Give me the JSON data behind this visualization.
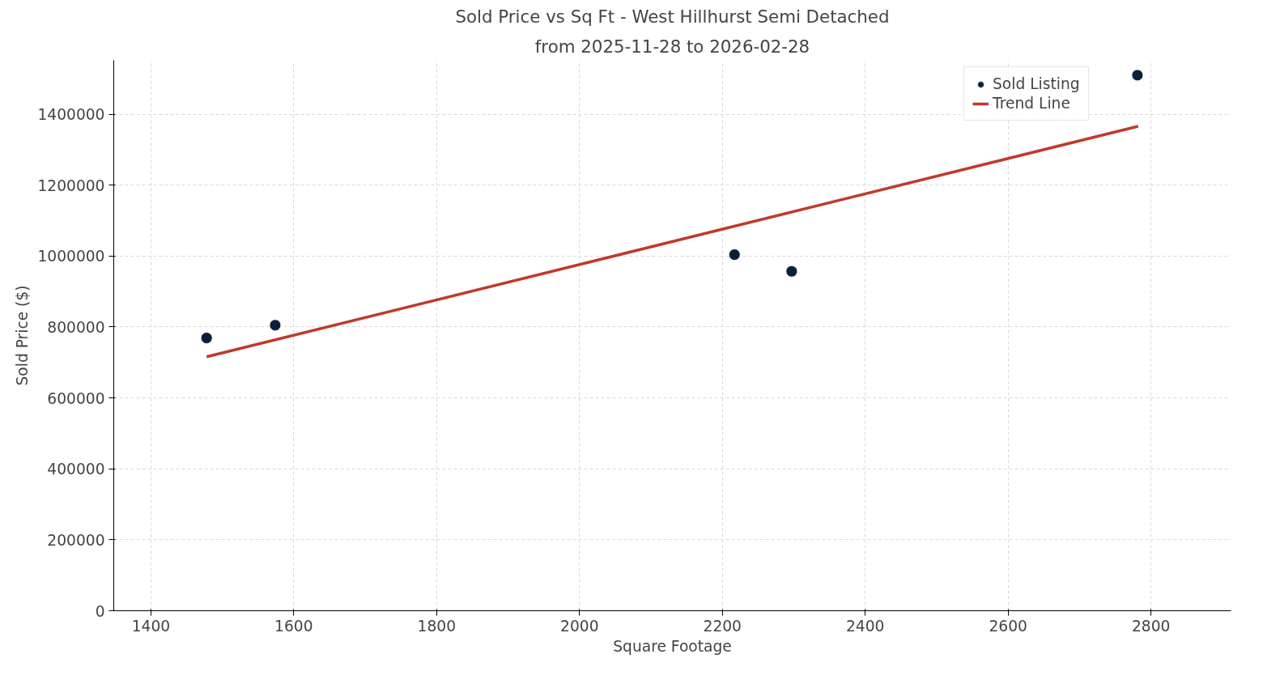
{
  "chart_data": {
    "type": "scatter",
    "title": "Sold Price vs Sq Ft - West Hillhurst Semi Detached",
    "subtitle": "from 2025-11-28 to 2026-02-28",
    "xlabel": "Square Footage",
    "ylabel": "Sold Price ($)",
    "series": [
      {
        "name": "Sold Listing",
        "marker": "circle",
        "color": "#0a1f3c",
        "x": [
          1478,
          1574,
          2217,
          2297,
          2781
        ],
        "values": [
          769000,
          805000,
          1004000,
          957000,
          1510000
        ]
      },
      {
        "name": "Trend Line",
        "type": "line",
        "color": "#c0392b",
        "x": [
          1478,
          2782
        ],
        "values": [
          716000,
          1366000
        ]
      }
    ],
    "xlim": [
      1348,
      2912
    ],
    "ylim": [
      0,
      1552000
    ],
    "xticks": [
      1400,
      1600,
      1800,
      2000,
      2200,
      2400,
      2600,
      2800
    ],
    "yticks": [
      0,
      200000,
      400000,
      600000,
      800000,
      1000000,
      1200000,
      1400000
    ],
    "grid": true,
    "legend": "top right",
    "line_style": "solid"
  }
}
